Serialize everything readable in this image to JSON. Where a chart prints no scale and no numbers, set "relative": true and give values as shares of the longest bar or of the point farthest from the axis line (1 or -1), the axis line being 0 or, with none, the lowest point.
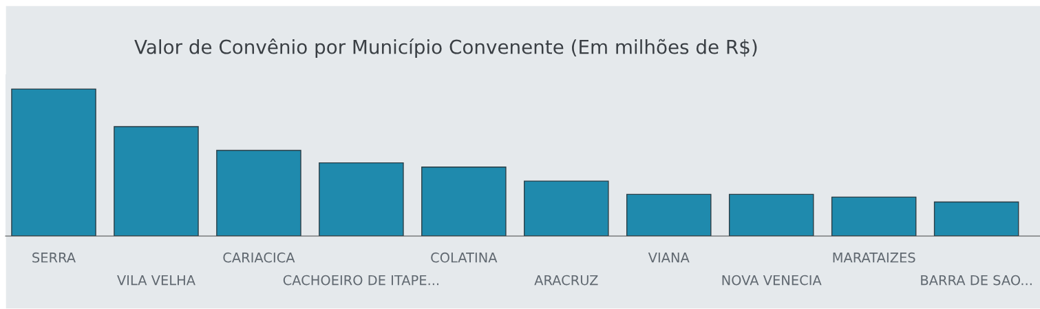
{
  "chart_data": {
    "type": "bar",
    "title": "Valor de Convênio por Município Convenente (Em milhões de R$)",
    "categories": [
      "SERRA",
      "VILA VELHA",
      "CARIACICA",
      "CACHOEIRO DE ITAPE...",
      "COLATINA",
      "ARACRUZ",
      "VIANA",
      "NOVA VENECIA",
      "MARATAIZES",
      "BARRA DE SAO..."
    ],
    "values": [
      1,
      0.744,
      0.583,
      0.498,
      0.469,
      0.374,
      0.284,
      0.284,
      0.265,
      0.232
    ],
    "color": "#1f8aad",
    "relative": true,
    "grid": false,
    "legend": false
  }
}
